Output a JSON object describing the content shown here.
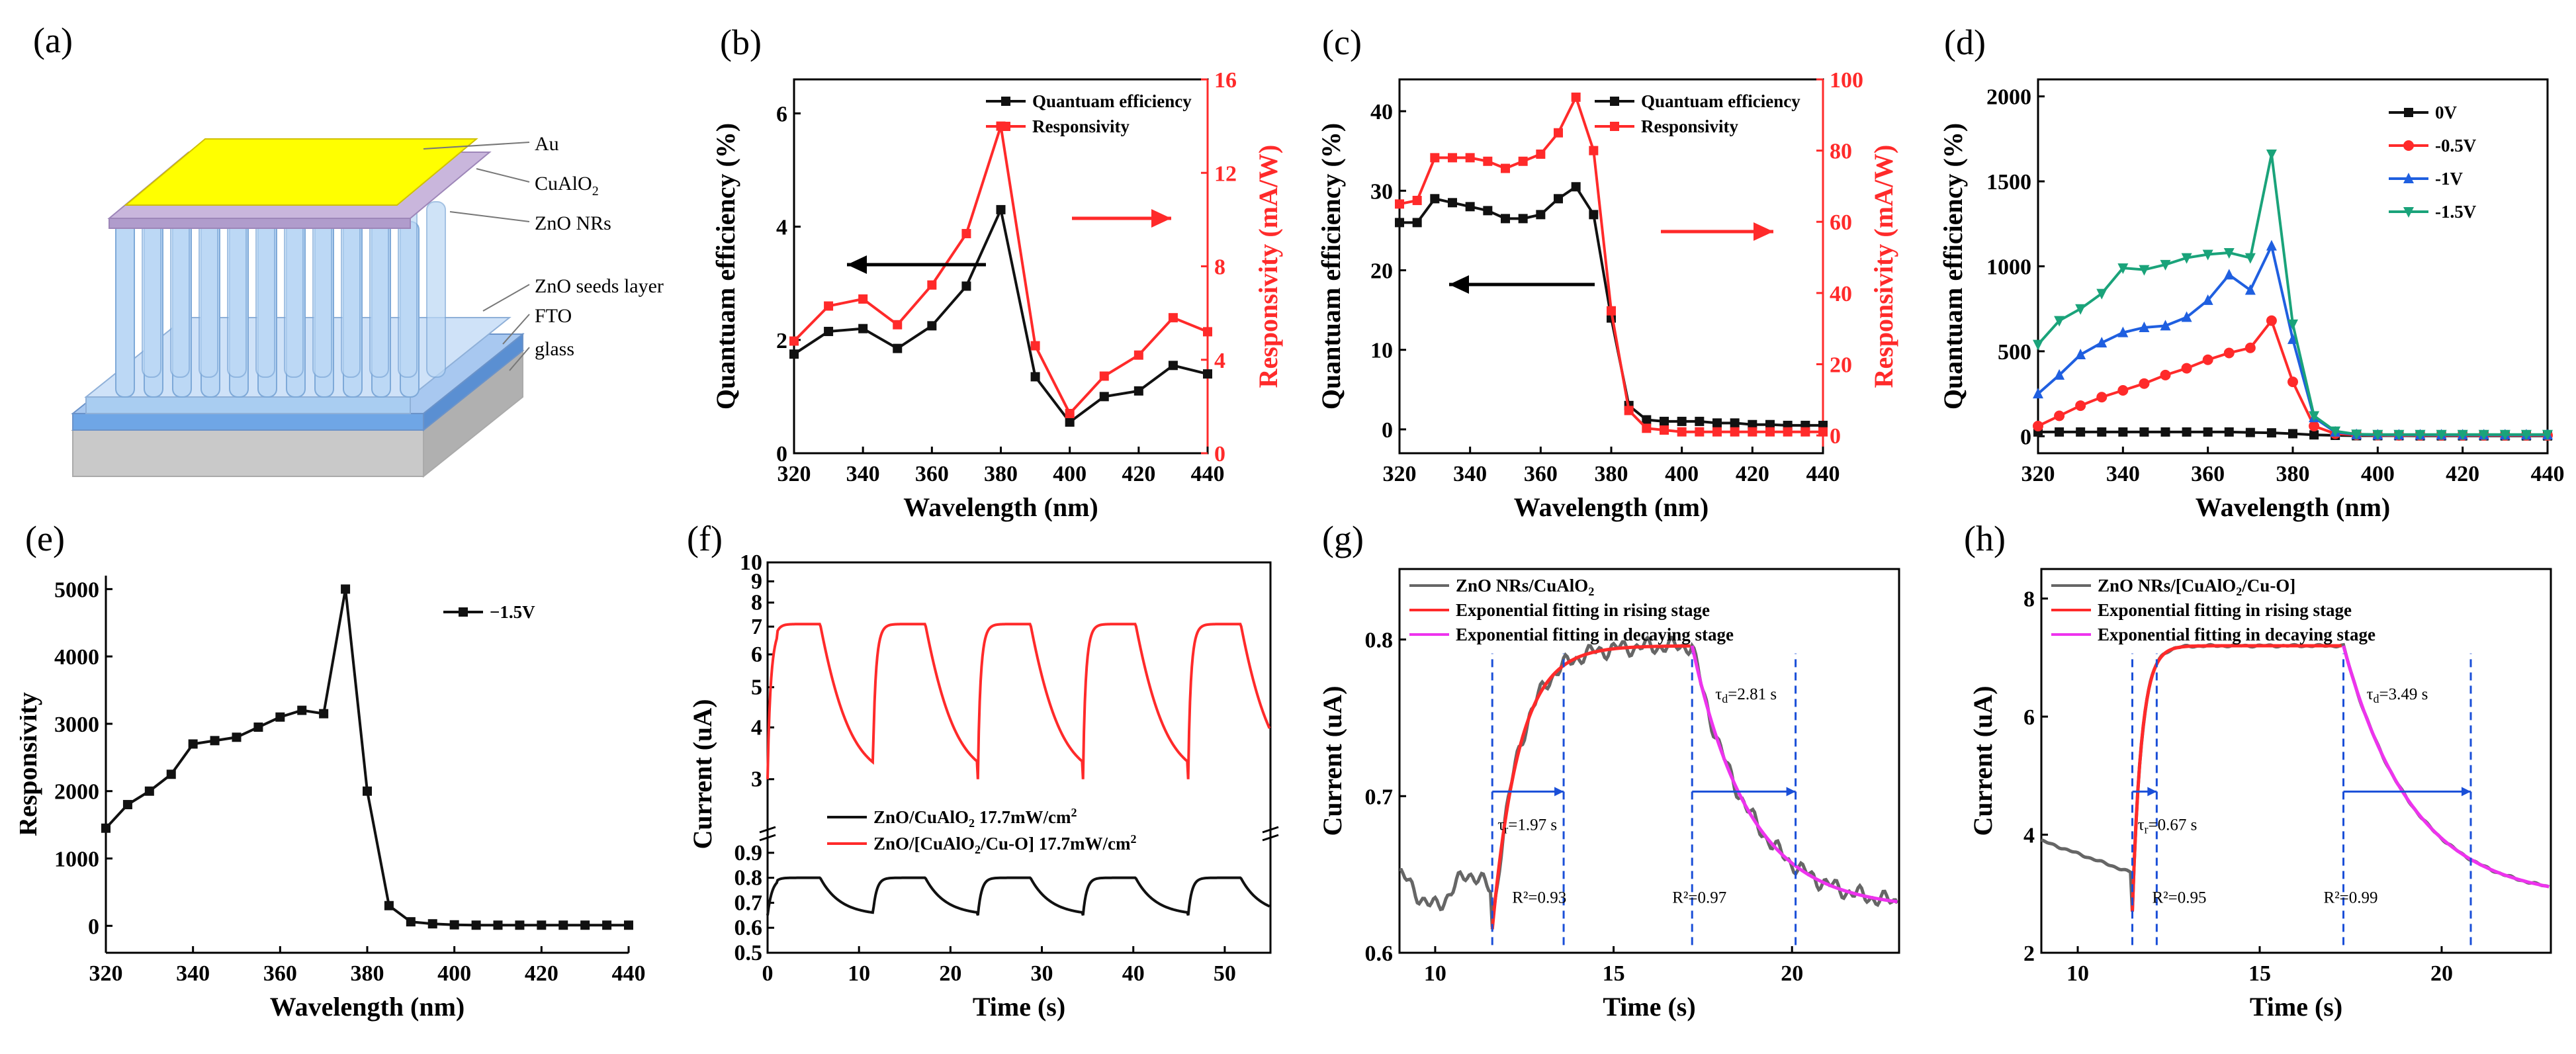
{
  "colors": {
    "black": "#111111",
    "red": "#ff2a2a",
    "blue": "#1f5fe0",
    "green": "#1aa37a",
    "magenta": "#ee33ee",
    "gray": "#666666",
    "dashed_blue": "#1a4fd8"
  },
  "panels": {
    "a": {
      "label": "(a)",
      "layers": [
        "Au",
        "CuAlO",
        "2",
        "ZnO NRs",
        "ZnO seeds layer",
        "FTO",
        "glass"
      ]
    }
  },
  "chart_data": [
    {
      "id": "b",
      "label": "(b)",
      "type": "line",
      "xlabel": "Wavelength (nm)",
      "ylabel": "Quantuam efficiency (%)",
      "y2label": "Responsivity (mA/W)",
      "xlim": [
        320,
        440
      ],
      "ylim": [
        0,
        6.6
      ],
      "y2lim": [
        0,
        16
      ],
      "xticks": [
        "320",
        "340",
        "360",
        "380",
        "400",
        "420",
        "440"
      ],
      "yticks": [
        "0",
        "2",
        "4",
        "6"
      ],
      "y2ticks": [
        "0",
        "4",
        "8",
        "12",
        "16"
      ],
      "x": [
        320,
        330,
        340,
        350,
        360,
        370,
        380,
        390,
        400,
        410,
        420,
        430,
        440
      ],
      "series": [
        {
          "name": "Quantuam efficiency",
          "axis": "left",
          "color": "black",
          "marker": "square",
          "values": [
            1.75,
            2.15,
            2.2,
            1.85,
            2.25,
            2.95,
            4.3,
            1.35,
            0.55,
            1.0,
            1.1,
            1.55,
            1.4
          ]
        },
        {
          "name": "Responsivity",
          "axis": "right",
          "color": "red",
          "marker": "square",
          "values": [
            4.8,
            6.3,
            6.6,
            5.5,
            7.2,
            9.4,
            14.0,
            4.6,
            1.7,
            3.3,
            4.2,
            5.8,
            5.2
          ]
        }
      ]
    },
    {
      "id": "c",
      "label": "(c)",
      "type": "line",
      "xlabel": "Wavelength (nm)",
      "ylabel": "Quantuam efficiency (%)",
      "y2label": "Responsivity (mA/W)",
      "xlim": [
        320,
        440
      ],
      "ylim": [
        -3,
        44
      ],
      "y2lim": [
        -5,
        100
      ],
      "xticks": [
        "320",
        "340",
        "360",
        "380",
        "400",
        "420",
        "440"
      ],
      "yticks": [
        "0",
        "10",
        "20",
        "30",
        "40"
      ],
      "y2ticks": [
        "0",
        "20",
        "40",
        "60",
        "80",
        "100"
      ],
      "x": [
        320,
        325,
        330,
        335,
        340,
        345,
        350,
        355,
        360,
        365,
        370,
        375,
        380,
        385,
        390,
        395,
        400,
        405,
        410,
        415,
        420,
        425,
        430,
        435,
        440
      ],
      "series": [
        {
          "name": "Quantuam efficiency",
          "axis": "left",
          "color": "black",
          "marker": "square",
          "values": [
            26,
            26,
            29,
            28.5,
            28,
            27.5,
            26.5,
            26.5,
            27,
            29,
            30.5,
            27,
            14,
            3,
            1.2,
            1,
            1,
            1,
            0.8,
            0.8,
            0.6,
            0.6,
            0.5,
            0.5,
            0.5
          ]
        },
        {
          "name": "Responsivity",
          "axis": "right",
          "color": "red",
          "marker": "square",
          "values": [
            65,
            66,
            78,
            78,
            78,
            77,
            75,
            77,
            79,
            85,
            95,
            80,
            35,
            7,
            2,
            1.5,
            1,
            1,
            1,
            1,
            1,
            1,
            1,
            1,
            1
          ]
        }
      ]
    },
    {
      "id": "d",
      "label": "(d)",
      "type": "line",
      "xlabel": "Wavelength (nm)",
      "ylabel": "Quantuam efficiency (%)",
      "xlim": [
        320,
        440
      ],
      "ylim": [
        -100,
        2100
      ],
      "xticks": [
        "320",
        "340",
        "360",
        "380",
        "400",
        "420",
        "440"
      ],
      "yticks": [
        "0",
        "500",
        "1000",
        "1500",
        "2000"
      ],
      "x": [
        320,
        325,
        330,
        335,
        340,
        345,
        350,
        355,
        360,
        365,
        370,
        375,
        380,
        385,
        390,
        395,
        400,
        405,
        410,
        415,
        420,
        425,
        430,
        435,
        440
      ],
      "series": [
        {
          "name": "0V",
          "color": "black",
          "marker": "square",
          "values": [
            25,
            25,
            25,
            25,
            25,
            25,
            25,
            25,
            25,
            25,
            22,
            20,
            15,
            8,
            5,
            3,
            3,
            3,
            2,
            2,
            2,
            2,
            2,
            2,
            2
          ]
        },
        {
          "name": "-0.5V",
          "color": "red",
          "marker": "circle",
          "values": [
            60,
            120,
            180,
            230,
            270,
            310,
            360,
            400,
            450,
            490,
            520,
            680,
            320,
            60,
            15,
            8,
            6,
            5,
            5,
            5,
            5,
            5,
            5,
            5,
            5
          ]
        },
        {
          "name": "-1V",
          "color": "blue",
          "marker": "triangle-up",
          "values": [
            250,
            360,
            480,
            550,
            610,
            640,
            650,
            700,
            800,
            950,
            860,
            1120,
            570,
            110,
            25,
            10,
            8,
            8,
            8,
            8,
            8,
            8,
            8,
            8,
            8
          ]
        },
        {
          "name": "-1.5V",
          "color": "green",
          "marker": "triangle-down",
          "values": [
            540,
            680,
            750,
            840,
            990,
            980,
            1010,
            1050,
            1070,
            1080,
            1050,
            1660,
            660,
            120,
            30,
            12,
            10,
            10,
            10,
            10,
            10,
            10,
            10,
            10,
            10
          ]
        }
      ]
    },
    {
      "id": "e",
      "label": "(e)",
      "type": "line",
      "xlabel": "Wavelength (nm)",
      "ylabel": "Responsivity",
      "xlim": [
        320,
        440
      ],
      "ylim": [
        -400,
        5200
      ],
      "xticks": [
        "320",
        "340",
        "360",
        "380",
        "400",
        "420",
        "440"
      ],
      "yticks": [
        "0",
        "1000",
        "2000",
        "3000",
        "4000",
        "5000"
      ],
      "x": [
        320,
        325,
        330,
        335,
        340,
        345,
        350,
        355,
        360,
        365,
        370,
        375,
        380,
        385,
        390,
        395,
        400,
        405,
        410,
        415,
        420,
        425,
        430,
        435,
        440
      ],
      "series": [
        {
          "name": "−1.5V",
          "color": "black",
          "marker": "square",
          "values": [
            1450,
            1800,
            2000,
            2250,
            2700,
            2750,
            2800,
            2950,
            3100,
            3200,
            3150,
            5000,
            2000,
            300,
            60,
            30,
            15,
            10,
            10,
            10,
            10,
            10,
            10,
            10,
            10
          ]
        }
      ]
    },
    {
      "id": "f",
      "label": "(f)",
      "type": "line",
      "xlabel": "Time (s)",
      "ylabel": "Current (uA)",
      "xlim": [
        0,
        55
      ],
      "xticks": [
        "0",
        "10",
        "20",
        "30",
        "40",
        "50"
      ],
      "yticks_top": [
        "3",
        "4",
        "5",
        "6",
        "7",
        "8",
        "9",
        "10"
      ],
      "yticks_bottom": [
        "0.5",
        "0.6",
        "0.7",
        "0.8",
        "0.9"
      ],
      "series": [
        {
          "name": "ZnO/CuAlO",
          "name_sub": "2",
          "name_rest": " 17.7mW/cm",
          "name_sup": "2",
          "color": "black",
          "period": 11.5,
          "on_level": 0.8,
          "off_level": 0.65
        },
        {
          "name": "ZnO/[CuAlO",
          "name_sub": "2",
          "name_rest": "/Cu-O] 17.7mW/cm",
          "name_sup": "2",
          "color": "red",
          "period": 11.5,
          "on_level": 7.1,
          "off_level": 3.0
        }
      ]
    },
    {
      "id": "g",
      "label": "(g)",
      "type": "line",
      "xlabel": "Time (s)",
      "ylabel": "Current (uA)",
      "xlim": [
        9,
        23
      ],
      "ylim": [
        0.6,
        0.845
      ],
      "xticks": [
        "10",
        "15",
        "20"
      ],
      "yticks": [
        "0.6",
        "0.7",
        "0.8"
      ],
      "legend": [
        "ZnO NRs/CuAlO",
        "2",
        "Exponential fitting in rising stage",
        "Exponential fitting in decaying stage"
      ],
      "annotations": {
        "tau_r": "τ",
        "tau_r_sub": "r",
        "tau_r_val": "=1.97 s",
        "tau_d": "τ",
        "tau_d_sub": "d",
        "tau_d_val": "=2.81 s",
        "r2_rise": "R²=0.93",
        "r2_decay": "R²=0.97"
      },
      "on_time": 11.6,
      "off_time": 17.2
    },
    {
      "id": "h",
      "label": "(h)",
      "type": "line",
      "xlabel": "Time (s)",
      "ylabel": "Current (uA)",
      "xlim": [
        9,
        23
      ],
      "ylim": [
        2,
        8.5
      ],
      "xticks": [
        "10",
        "15",
        "20"
      ],
      "yticks": [
        "2",
        "4",
        "6",
        "8"
      ],
      "legend": [
        "ZnO NRs/[CuAlO",
        "2",
        "/Cu-O]",
        "Exponential fitting in rising stage",
        "Exponential fitting in decaying stage"
      ],
      "annotations": {
        "tau_r": "τ",
        "tau_r_sub": "r",
        "tau_r_val": "=0.67 s",
        "tau_d": "τ",
        "tau_d_sub": "d",
        "tau_d_val": "=3.49 s",
        "r2_rise": "R²=0.95",
        "r2_decay": "R²=0.99"
      },
      "on_time": 11.5,
      "off_time": 17.3
    }
  ]
}
